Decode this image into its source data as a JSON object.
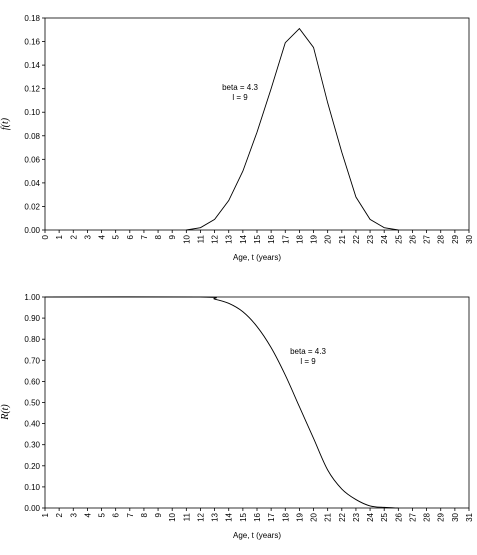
{
  "chart_data": [
    {
      "type": "line",
      "xlabel": "Age, t (years)",
      "ylabel": "f(t)",
      "xlim": [
        0,
        30
      ],
      "ylim": [
        0,
        0.18
      ],
      "x_ticks": [
        "0",
        "1",
        "2",
        "3",
        "4",
        "5",
        "6",
        "7",
        "8",
        "9",
        "10",
        "11",
        "12",
        "13",
        "14",
        "15",
        "16",
        "17",
        "18",
        "19",
        "20",
        "21",
        "22",
        "23",
        "24",
        "25",
        "26",
        "27",
        "28",
        "29",
        "30"
      ],
      "y_ticks": [
        "0.00",
        "0.02",
        "0.04",
        "0.06",
        "0.08",
        "0.10",
        "0.12",
        "0.14",
        "0.16",
        "0.18"
      ],
      "grid": false,
      "annotation": [
        "beta = 4.3",
        "l = 9"
      ],
      "series": [
        {
          "x": [
            10,
            11,
            12,
            13,
            14,
            15,
            16,
            17,
            18,
            19,
            20,
            21,
            22,
            23,
            24,
            25
          ],
          "values": [
            0.0,
            0.002,
            0.009,
            0.025,
            0.05,
            0.083,
            0.12,
            0.159,
            0.171,
            0.155,
            0.108,
            0.066,
            0.028,
            0.009,
            0.002,
            0.0
          ]
        }
      ]
    },
    {
      "type": "line",
      "xlabel": "Age, t (years)",
      "ylabel": "R(t)",
      "xlim": [
        1,
        31
      ],
      "ylim": [
        0,
        1
      ],
      "x_ticks": [
        "1",
        "2",
        "3",
        "4",
        "5",
        "6",
        "7",
        "8",
        "9",
        "10",
        "11",
        "12",
        "13",
        "14",
        "15",
        "16",
        "17",
        "18",
        "19",
        "20",
        "21",
        "22",
        "23",
        "24",
        "25",
        "26",
        "27",
        "28",
        "29",
        "30",
        "31"
      ],
      "y_ticks": [
        "0.00",
        "0.10",
        "0.20",
        "0.30",
        "0.40",
        "0.50",
        "0.60",
        "0.70",
        "0.80",
        "0.90",
        "1.00"
      ],
      "grid": false,
      "annotation": [
        "beta = 4.3",
        "l = 9"
      ],
      "series": [
        {
          "x": [
            1,
            12,
            13,
            14,
            15,
            16,
            17,
            18,
            19,
            20,
            21,
            22,
            23,
            24,
            25,
            26
          ],
          "values": [
            1.0,
            1.0,
            0.99,
            0.97,
            0.93,
            0.86,
            0.76,
            0.63,
            0.48,
            0.33,
            0.18,
            0.09,
            0.04,
            0.01,
            0.003,
            0.0
          ]
        }
      ]
    }
  ]
}
